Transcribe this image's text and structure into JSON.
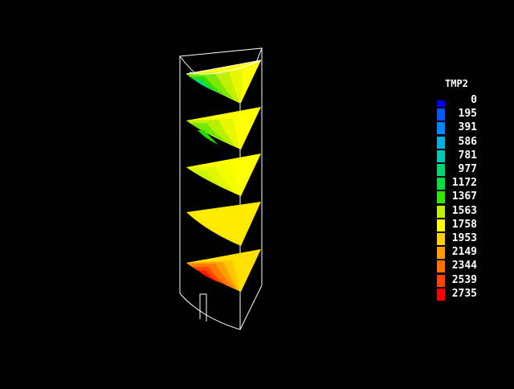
{
  "legend": {
    "title": "TMP2",
    "entries": [
      {
        "value": "0",
        "color": "#0000ff"
      },
      {
        "value": "195",
        "color": "#0058ff"
      },
      {
        "value": "391",
        "color": "#0088ff"
      },
      {
        "value": "586",
        "color": "#00b0e0"
      },
      {
        "value": "781",
        "color": "#00c8b8"
      },
      {
        "value": "977",
        "color": "#00d878"
      },
      {
        "value": "1172",
        "color": "#00e040"
      },
      {
        "value": "1367",
        "color": "#30e800"
      },
      {
        "value": "1563",
        "color": "#c0f000"
      },
      {
        "value": "1758",
        "color": "#ffff00"
      },
      {
        "value": "1953",
        "color": "#ffd000"
      },
      {
        "value": "2149",
        "color": "#ffa000"
      },
      {
        "value": "2344",
        "color": "#ff7000"
      },
      {
        "value": "2539",
        "color": "#ff4000"
      },
      {
        "value": "2735",
        "color": "#ff0000"
      }
    ]
  },
  "scene": {
    "frame_color": "#ffffff",
    "background": "#000000"
  }
}
